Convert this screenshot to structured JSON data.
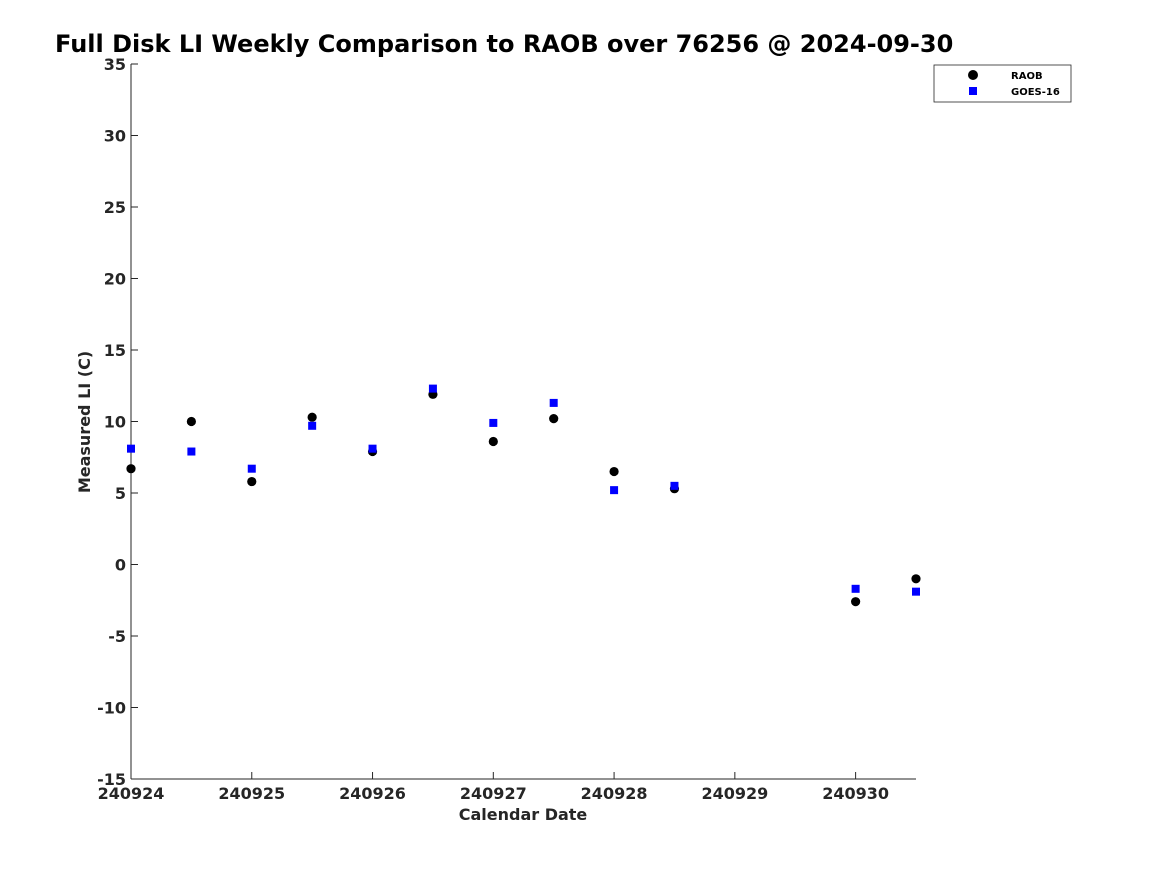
{
  "chart_data": {
    "type": "scatter",
    "title": "Full Disk LI Weekly Comparison to RAOB over 76256 @ 2024-09-30",
    "xlabel": "Calendar Date",
    "ylabel": "Measured LI (C)",
    "xlim": [
      "240924 00Z",
      "240930 12Z"
    ],
    "ylim": [
      -15,
      35
    ],
    "x_tick_labels": [
      "240924",
      "240925",
      "240926",
      "240927",
      "240928",
      "240929",
      "240930"
    ],
    "y_ticks": [
      35,
      30,
      25,
      20,
      15,
      10,
      5,
      0,
      -5,
      -10,
      -15
    ],
    "grid": false,
    "legend_position": "top-right",
    "series": [
      {
        "name": "RAOB",
        "marker": "circle",
        "color": "#000000",
        "points": [
          {
            "x": "240924 00Z",
            "y": 6.7
          },
          {
            "x": "240924 12Z",
            "y": 10.0
          },
          {
            "x": "240925 00Z",
            "y": 5.8
          },
          {
            "x": "240925 12Z",
            "y": 10.3
          },
          {
            "x": "240926 00Z",
            "y": 7.9
          },
          {
            "x": "240926 12Z",
            "y": 11.9
          },
          {
            "x": "240927 00Z",
            "y": 8.6
          },
          {
            "x": "240927 12Z",
            "y": 10.2
          },
          {
            "x": "240928 00Z",
            "y": 6.5
          },
          {
            "x": "240928 12Z",
            "y": 5.3
          },
          {
            "x": "240930 00Z",
            "y": -2.6
          },
          {
            "x": "240930 12Z",
            "y": -1.0
          }
        ]
      },
      {
        "name": "GOES-16",
        "marker": "square",
        "color": "#0000ff",
        "points": [
          {
            "x": "240924 00Z",
            "y": 8.1
          },
          {
            "x": "240924 12Z",
            "y": 7.9
          },
          {
            "x": "240925 00Z",
            "y": 6.7
          },
          {
            "x": "240925 12Z",
            "y": 9.7
          },
          {
            "x": "240926 00Z",
            "y": 8.1
          },
          {
            "x": "240926 12Z",
            "y": 12.3
          },
          {
            "x": "240927 00Z",
            "y": 9.9
          },
          {
            "x": "240927 12Z",
            "y": 11.3
          },
          {
            "x": "240928 00Z",
            "y": 5.2
          },
          {
            "x": "240928 12Z",
            "y": 5.5
          },
          {
            "x": "240930 00Z",
            "y": -1.7
          },
          {
            "x": "240930 12Z",
            "y": -1.9
          }
        ]
      }
    ]
  }
}
